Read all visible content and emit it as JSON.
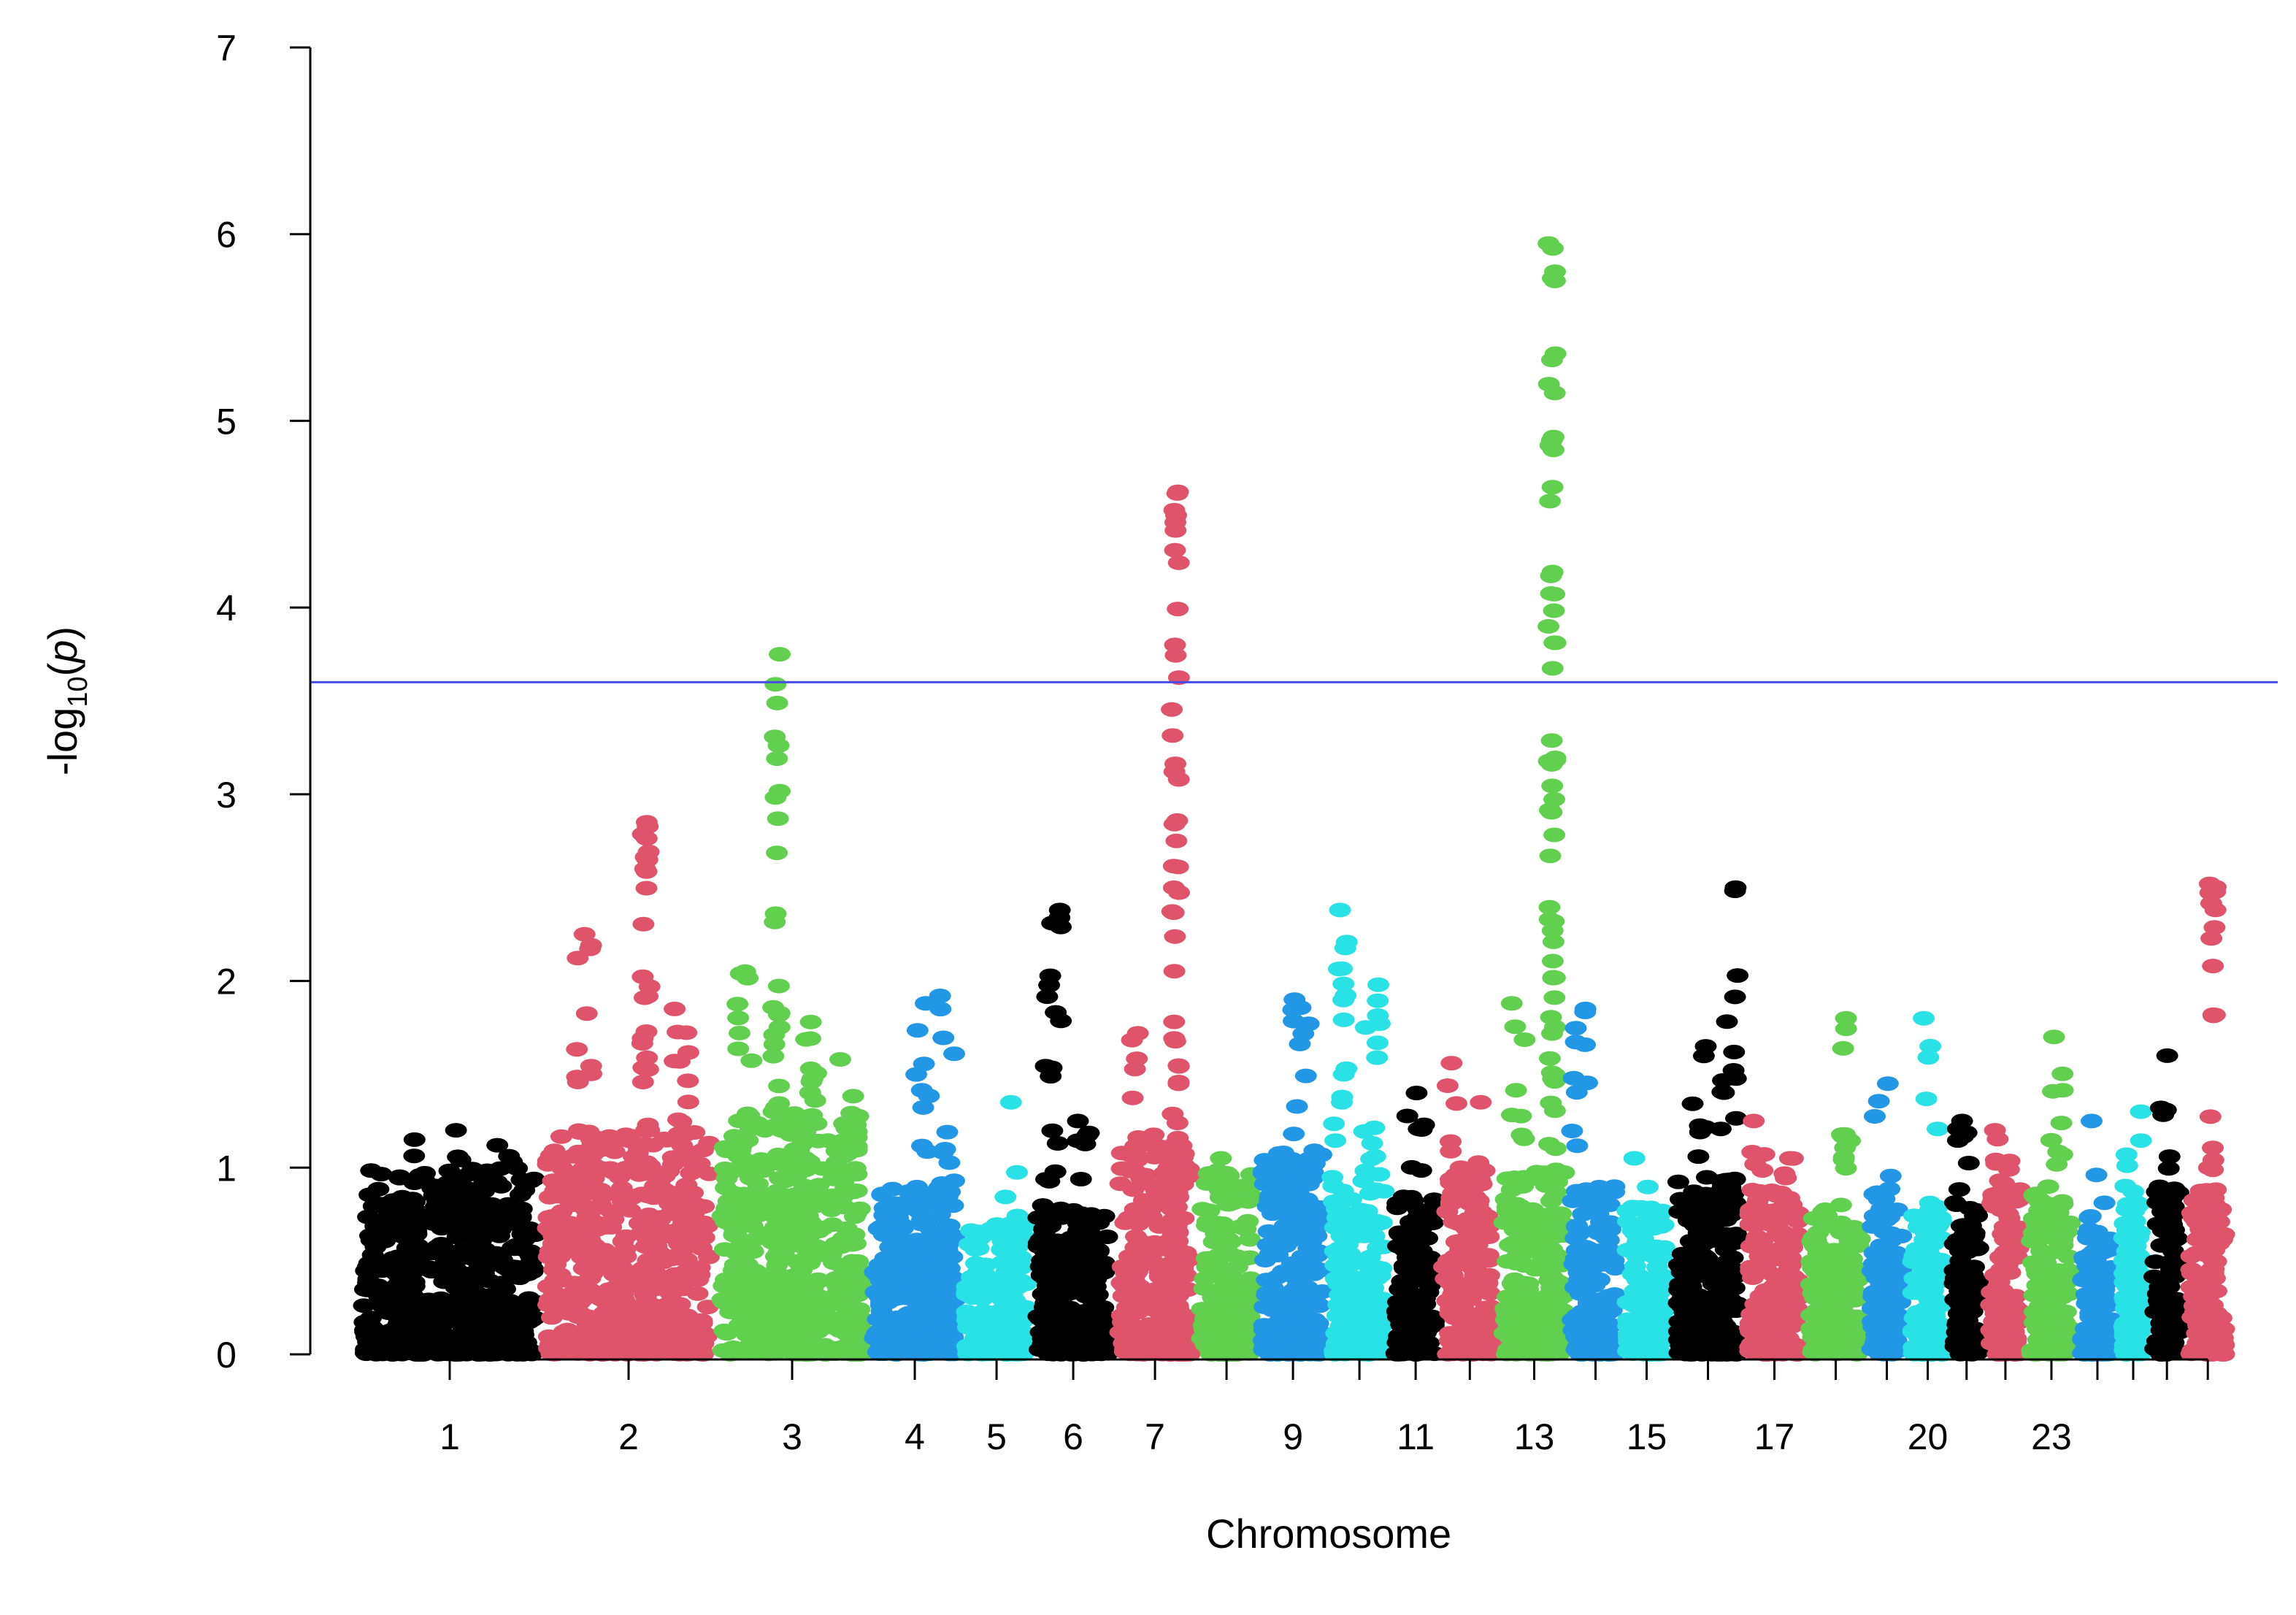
{
  "chart_data": {
    "type": "scatter",
    "subtype": "manhattan",
    "title": "",
    "xlabel": "Chromosome",
    "ylabel_prefix": "-log",
    "ylabel_subscript": "10",
    "ylabel_suffix": "(p)",
    "ylim": [
      0,
      7
    ],
    "yticks": [
      0,
      1,
      2,
      3,
      4,
      5,
      6,
      7
    ],
    "threshold": 3.6,
    "threshold_color": "#4a4ae8",
    "colors": [
      "#000000",
      "#df536b",
      "#61d04f",
      "#2297e6",
      "#28e2e5"
    ],
    "chromosomes": [
      {
        "chr": 1,
        "label": "1",
        "size": 9,
        "baseline": 1.0,
        "peaks": [
          [
            0.3,
            1.15
          ],
          [
            0.55,
            1.2
          ],
          [
            0.8,
            1.12
          ]
        ]
      },
      {
        "chr": 2,
        "label": "2",
        "size": 8.5,
        "baseline": 1.2,
        "peaks": [
          [
            0.25,
            2.25
          ],
          [
            0.6,
            2.85
          ],
          [
            0.8,
            1.85
          ]
        ]
      },
      {
        "chr": 3,
        "label": "3",
        "size": 7.5,
        "baseline": 1.3,
        "peaks": [
          [
            0.2,
            2.05
          ],
          [
            0.4,
            3.75
          ],
          [
            0.6,
            1.78
          ],
          [
            0.85,
            1.58
          ]
        ]
      },
      {
        "chr": 4,
        "label": "4",
        "size": 4.5,
        "baseline": 0.9,
        "peaks": [
          [
            0.6,
            1.88
          ],
          [
            0.85,
            1.92
          ]
        ]
      },
      {
        "chr": 5,
        "label": "5",
        "size": 3.5,
        "baseline": 0.7,
        "peaks": [
          [
            0.7,
            1.35
          ]
        ]
      },
      {
        "chr": 6,
        "label": "6",
        "size": 4,
        "baseline": 0.8,
        "peaks": [
          [
            0.25,
            2.38
          ],
          [
            0.6,
            1.25
          ]
        ]
      },
      {
        "chr": 7,
        "label": "7",
        "size": 4,
        "baseline": 1.2,
        "peaks": [
          [
            0.3,
            1.72
          ],
          [
            0.75,
            4.62
          ]
        ]
      },
      {
        "chr": 8,
        "label": "",
        "size": 3,
        "baseline": 1.0,
        "peaks": [
          [
            0.4,
            1.05
          ]
        ]
      },
      {
        "chr": 9,
        "label": "9",
        "size": 3.5,
        "baseline": 1.1,
        "peaks": [
          [
            0.6,
            1.9
          ]
        ]
      },
      {
        "chr": 10,
        "label": "",
        "size": 3,
        "baseline": 0.9,
        "peaks": [
          [
            0.2,
            2.38
          ],
          [
            0.7,
            1.98
          ]
        ]
      },
      {
        "chr": 11,
        "label": "11",
        "size": 2.5,
        "baseline": 0.85,
        "peaks": [
          [
            0.5,
            1.4
          ]
        ]
      },
      {
        "chr": 12,
        "label": "",
        "size": 2.8,
        "baseline": 1.0,
        "peaks": [
          [
            0.2,
            1.56
          ],
          [
            0.6,
            1.35
          ]
        ]
      },
      {
        "chr": 13,
        "label": "13",
        "size": 3.5,
        "baseline": 1.0,
        "peaks": [
          [
            0.3,
            1.88
          ],
          [
            0.75,
            5.95
          ]
        ]
      },
      {
        "chr": 14,
        "label": "",
        "size": 2.5,
        "baseline": 0.9,
        "peaks": [
          [
            0.2,
            1.85
          ]
        ]
      },
      {
        "chr": 15,
        "label": "15",
        "size": 2.5,
        "baseline": 0.8,
        "peaks": [
          [
            0.4,
            1.05
          ]
        ]
      },
      {
        "chr": 16,
        "label": "",
        "size": 3.5,
        "baseline": 0.95,
        "peaks": [
          [
            0.4,
            1.65
          ],
          [
            0.8,
            2.5
          ]
        ]
      },
      {
        "chr": 17,
        "label": "17",
        "size": 3,
        "baseline": 0.9,
        "peaks": [
          [
            0.2,
            1.25
          ],
          [
            0.7,
            1.05
          ]
        ]
      },
      {
        "chr": 18,
        "label": "",
        "size": 3,
        "baseline": 0.8,
        "peaks": [
          [
            0.7,
            1.8
          ]
        ]
      },
      {
        "chr": 19,
        "label": "",
        "size": 2,
        "baseline": 0.9,
        "peaks": [
          [
            0.4,
            1.45
          ]
        ]
      },
      {
        "chr": 20,
        "label": "20",
        "size": 2,
        "baseline": 0.8,
        "peaks": [
          [
            0.6,
            1.8
          ]
        ]
      },
      {
        "chr": 21,
        "label": "",
        "size": 1.8,
        "baseline": 0.9,
        "peaks": [
          [
            0.5,
            1.25
          ]
        ]
      },
      {
        "chr": 22,
        "label": "",
        "size": 2,
        "baseline": 0.9,
        "peaks": [
          [
            0.4,
            1.2
          ]
        ]
      },
      {
        "chr": 23,
        "label": "23",
        "size": 2.5,
        "baseline": 0.9,
        "peaks": [
          [
            0.6,
            1.7
          ]
        ]
      },
      {
        "chr": 24,
        "label": "",
        "size": 2,
        "baseline": 0.7,
        "peaks": [
          [
            0.5,
            1.25
          ]
        ]
      },
      {
        "chr": 25,
        "label": "",
        "size": 1.5,
        "baseline": 0.8,
        "peaks": [
          [
            0.5,
            1.3
          ]
        ]
      },
      {
        "chr": 26,
        "label": "",
        "size": 1.8,
        "baseline": 0.9,
        "peaks": [
          [
            0.5,
            1.6
          ]
        ]
      },
      {
        "chr": 27,
        "label": "",
        "size": 2.2,
        "baseline": 0.9,
        "peaks": [
          [
            0.6,
            2.52
          ]
        ]
      }
    ]
  }
}
